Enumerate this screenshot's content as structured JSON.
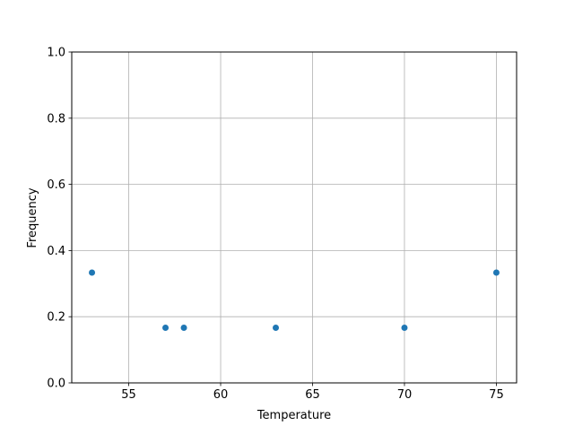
{
  "chart_data": {
    "type": "scatter",
    "title": "",
    "xlabel": "Temperature",
    "ylabel": "Frequency",
    "xlim": [
      51.9,
      76.1
    ],
    "ylim": [
      0,
      1
    ],
    "xticks": [
      55,
      60,
      65,
      70,
      75
    ],
    "xtick_labels": [
      "55",
      "60",
      "65",
      "70",
      "75"
    ],
    "yticks": [
      0,
      0.2,
      0.4,
      0.6,
      0.8,
      1.0
    ],
    "ytick_labels": [
      "0.0",
      "0.2",
      "0.4",
      "0.6",
      "0.8",
      "1.0"
    ],
    "grid": true,
    "x": [
      53,
      57,
      58,
      63,
      70,
      75
    ],
    "y": [
      0.3333,
      0.1667,
      0.1667,
      0.1667,
      0.1667,
      0.3333
    ],
    "color": "#1f77b4"
  }
}
